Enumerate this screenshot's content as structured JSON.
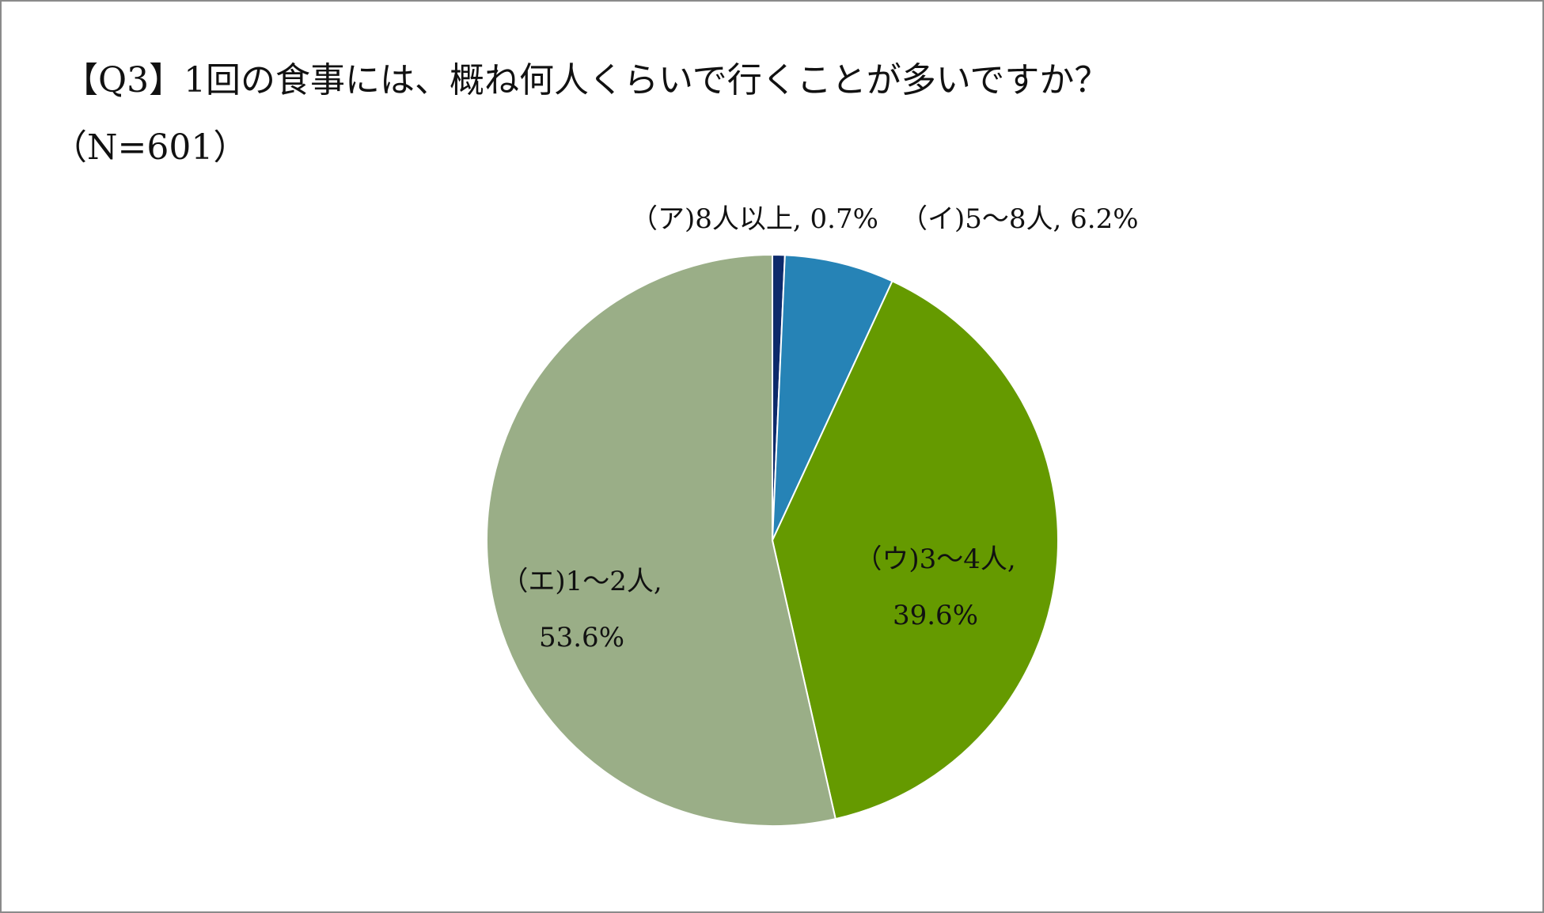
{
  "chart_data": {
    "type": "pie",
    "title": "【Q3】1回の食事には、概ね何人くらいで行くことが多いですか？",
    "subtitle": "（N=601）",
    "slices": [
      {
        "name": "（ア)8人以上",
        "value": 0.7,
        "value_label": "0.7%",
        "color": "#0d2a6b"
      },
      {
        "name": "（イ)5～8人",
        "value": 6.2,
        "value_label": "6.2%",
        "color": "#2683b6"
      },
      {
        "name": "（ウ)3～4人",
        "value": 39.6,
        "value_label": "39.6%",
        "color": "#659a00"
      },
      {
        "name": "（エ)1～2人",
        "value": 53.6,
        "value_label": "53.6%",
        "color": "#9aae87"
      }
    ],
    "start_angle": "12 o'clock",
    "direction": "clockwise",
    "legend": "none"
  }
}
